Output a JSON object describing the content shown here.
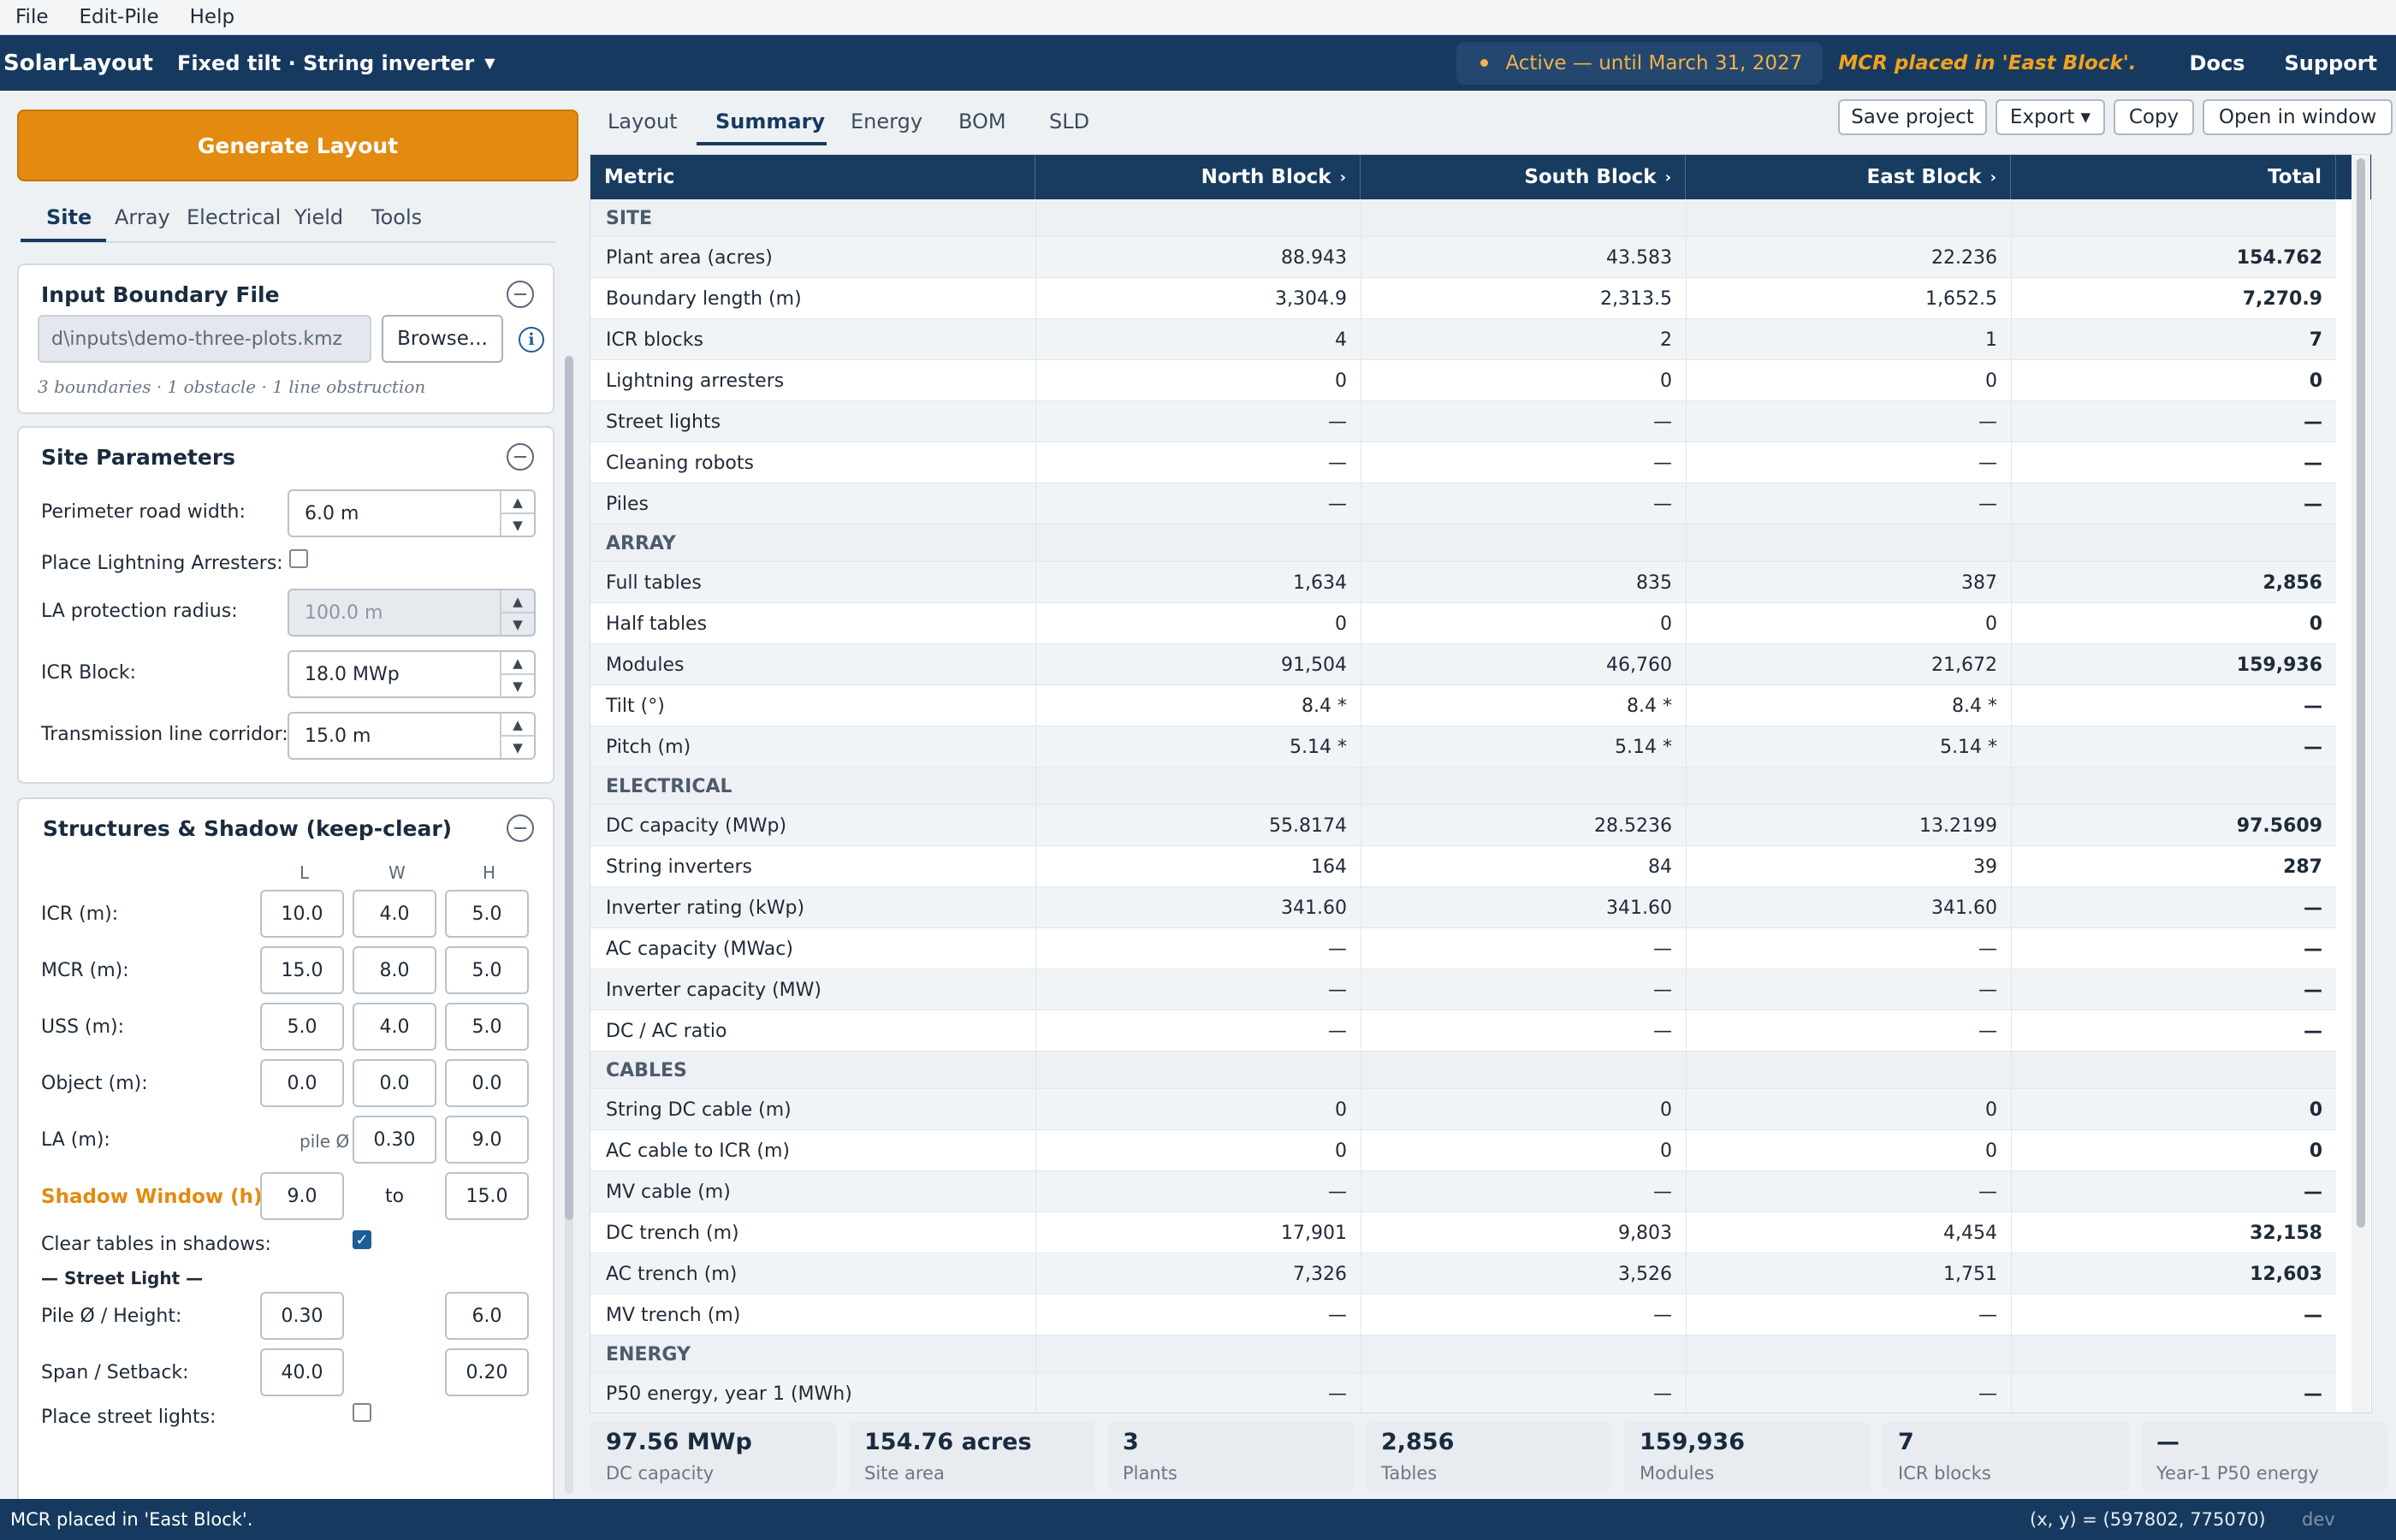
{
  "menu": [
    "File",
    "Edit-Pile",
    "Help"
  ],
  "header": {
    "brand": "SolarLayout",
    "mode": "Fixed tilt · String inverter",
    "license": "Active — until March 31, 2027",
    "notice": "MCR placed in 'East Block'.",
    "links": [
      "Docs",
      "Support"
    ]
  },
  "left": {
    "generate_label": "Generate Layout",
    "tabs": [
      "Site",
      "Array",
      "Electrical",
      "Yield",
      "Tools"
    ],
    "boundary": {
      "title": "Input Boundary File",
      "file_value": "d\\inputs\\demo-three-plots.kmz",
      "browse_label": "Browse...",
      "info": "i",
      "note": "3 boundaries · 1 obstacle · 1 line obstruction"
    },
    "site": {
      "title": "Site Parameters",
      "perimeter_label": "Perimeter road width:",
      "perimeter_value": "6.0  m",
      "la_place_label": "Place Lightning Arresters:",
      "la_radius_label": "LA protection radius:",
      "la_radius_value": "100.0  m",
      "icr_label": "ICR Block:",
      "icr_value": "18.0  MWp",
      "tl_label": "Transmission line corridor:",
      "tl_value": "15.0  m"
    },
    "structures": {
      "title": "Structures & Shadow (keep-clear)",
      "col_l": "L",
      "col_w": "W",
      "col_h": "H",
      "icr_label": "ICR (m):",
      "icr": [
        "10.0",
        "4.0",
        "5.0"
      ],
      "mcr_label": "MCR (m):",
      "mcr": [
        "15.0",
        "8.0",
        "5.0"
      ],
      "uss_label": "USS (m):",
      "uss": [
        "5.0",
        "4.0",
        "5.0"
      ],
      "obj_label": "Object (m):",
      "obj": [
        "0.0",
        "0.0",
        "0.0"
      ],
      "la_label": "LA (m):",
      "la_pile": "pile Ø",
      "la": [
        "0.30",
        "9.0"
      ],
      "shadow_label": "Shadow Window (h):",
      "shadow_from": "9.0",
      "shadow_to_label": "to",
      "shadow_to": "15.0",
      "clear_label": "Clear tables in shadows:",
      "street_heading": "— Street Light —",
      "pile_label": "Pile Ø / Height:",
      "pile": [
        "0.30",
        "6.0"
      ],
      "span_label": "Span / Setback:",
      "span": [
        "40.0",
        "0.20"
      ],
      "place_sl_label": "Place street lights:"
    }
  },
  "right": {
    "tabs": [
      "Layout",
      "Summary",
      "Energy",
      "BOM",
      "SLD"
    ],
    "buttons": [
      "Save project",
      "Export ▾",
      "Copy",
      "Open in window"
    ],
    "columns": [
      "Metric",
      "North Block",
      "South Block",
      "East Block",
      "Total"
    ],
    "rows": [
      {
        "section": "SITE"
      },
      {
        "m": "Plant area (acres)",
        "v": [
          "88.943",
          "43.583",
          "22.236",
          "154.762"
        ]
      },
      {
        "m": "Boundary length (m)",
        "v": [
          "3,304.9",
          "2,313.5",
          "1,652.5",
          "7,270.9"
        ]
      },
      {
        "m": "ICR blocks",
        "v": [
          "4",
          "2",
          "1",
          "7"
        ]
      },
      {
        "m": "Lightning arresters",
        "v": [
          "0",
          "0",
          "0",
          "0"
        ]
      },
      {
        "m": "Street lights",
        "v": [
          "—",
          "—",
          "—",
          "—"
        ]
      },
      {
        "m": "Cleaning robots",
        "v": [
          "—",
          "—",
          "—",
          "—"
        ]
      },
      {
        "m": "Piles",
        "v": [
          "—",
          "—",
          "—",
          "—"
        ]
      },
      {
        "section": "ARRAY"
      },
      {
        "m": "Full tables",
        "v": [
          "1,634",
          "835",
          "387",
          "2,856"
        ]
      },
      {
        "m": "Half tables",
        "v": [
          "0",
          "0",
          "0",
          "0"
        ]
      },
      {
        "m": "Modules",
        "v": [
          "91,504",
          "46,760",
          "21,672",
          "159,936"
        ]
      },
      {
        "m": "Tilt (°)",
        "v": [
          "8.4 *",
          "8.4 *",
          "8.4 *",
          "—"
        ]
      },
      {
        "m": "Pitch (m)",
        "v": [
          "5.14 *",
          "5.14 *",
          "5.14 *",
          "—"
        ]
      },
      {
        "section": "ELECTRICAL"
      },
      {
        "m": "DC capacity (MWp)",
        "v": [
          "55.8174",
          "28.5236",
          "13.2199",
          "97.5609"
        ]
      },
      {
        "m": "String inverters",
        "v": [
          "164",
          "84",
          "39",
          "287"
        ]
      },
      {
        "m": "Inverter rating (kWp)",
        "v": [
          "341.60",
          "341.60",
          "341.60",
          "—"
        ]
      },
      {
        "m": "AC capacity (MWac)",
        "v": [
          "—",
          "—",
          "—",
          "—"
        ]
      },
      {
        "m": "Inverter capacity (MW)",
        "v": [
          "—",
          "—",
          "—",
          "—"
        ]
      },
      {
        "m": "DC / AC ratio",
        "v": [
          "—",
          "—",
          "—",
          "—"
        ]
      },
      {
        "section": "CABLES"
      },
      {
        "m": "String DC cable (m)",
        "v": [
          "0",
          "0",
          "0",
          "0"
        ]
      },
      {
        "m": "AC cable to ICR (m)",
        "v": [
          "0",
          "0",
          "0",
          "0"
        ]
      },
      {
        "m": "MV cable (m)",
        "v": [
          "—",
          "—",
          "—",
          "—"
        ]
      },
      {
        "m": "DC trench (m)",
        "v": [
          "17,901",
          "9,803",
          "4,454",
          "32,158"
        ]
      },
      {
        "m": "AC trench (m)",
        "v": [
          "7,326",
          "3,526",
          "1,751",
          "12,603"
        ]
      },
      {
        "m": "MV trench (m)",
        "v": [
          "—",
          "—",
          "—",
          "—"
        ]
      },
      {
        "section": "ENERGY"
      },
      {
        "m": "P50 energy, year 1 (MWh)",
        "v": [
          "—",
          "—",
          "—",
          "—"
        ]
      }
    ],
    "summary_cards": [
      {
        "value": "97.56 MWp",
        "label": "DC capacity"
      },
      {
        "value": "154.76 acres",
        "label": "Site area"
      },
      {
        "value": "3",
        "label": "Plants"
      },
      {
        "value": "2,856",
        "label": "Tables"
      },
      {
        "value": "159,936",
        "label": "Modules"
      },
      {
        "value": "7",
        "label": "ICR blocks"
      },
      {
        "value": "—",
        "label": "Year-1 P50 energy"
      }
    ]
  },
  "status": {
    "message": "MCR placed in 'East Block'.",
    "coords": "(x, y) = (597802, 775070)",
    "env": "dev"
  }
}
